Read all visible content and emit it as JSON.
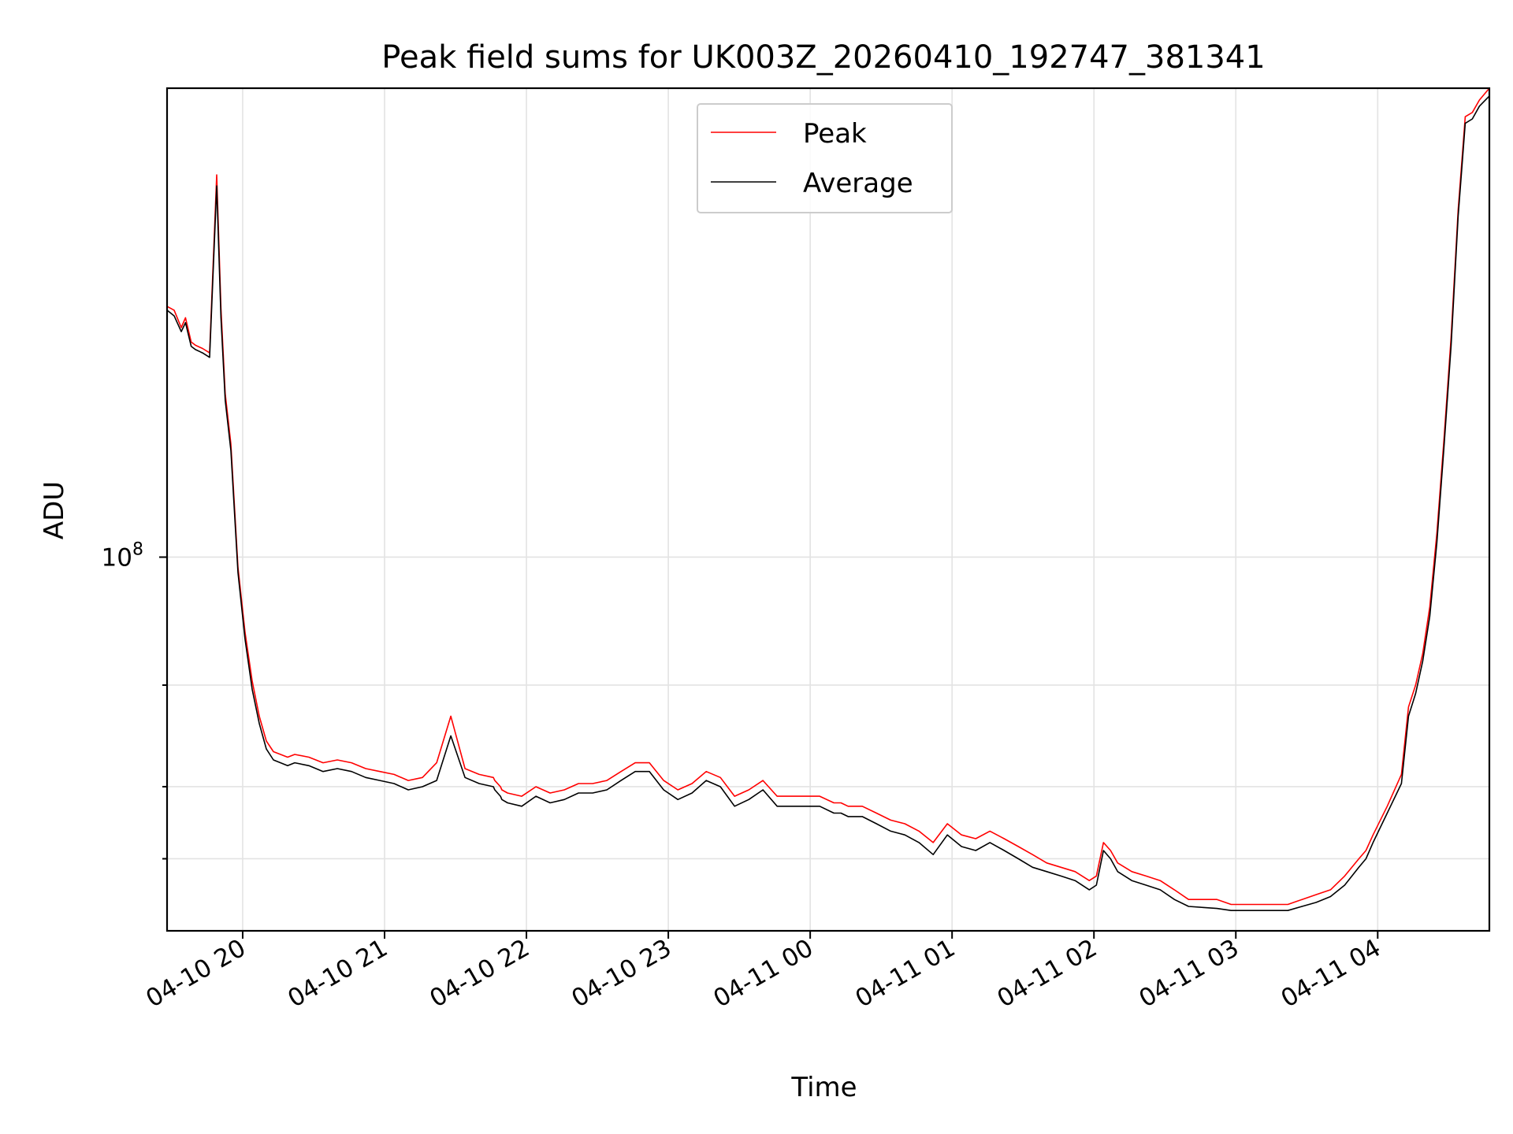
{
  "chart_data": {
    "type": "line",
    "title": "Peak field sums for UK003Z_20260410_192747_381341",
    "xlabel": "Time",
    "ylabel": "ADU",
    "yscale": "log",
    "grid": true,
    "legend_position": "top-center",
    "x_unit": "hours since 2026-04-10 19:28",
    "xlim": [
      0,
      9.32
    ],
    "ylim": [
      22500000,
      650000000
    ],
    "x_ticks": [
      {
        "value": 0.533,
        "label": "04-10 20"
      },
      {
        "value": 1.533,
        "label": "04-10 21"
      },
      {
        "value": 2.533,
        "label": "04-10 22"
      },
      {
        "value": 3.533,
        "label": "04-10 23"
      },
      {
        "value": 4.533,
        "label": "04-11 00"
      },
      {
        "value": 5.533,
        "label": "04-11 01"
      },
      {
        "value": 6.533,
        "label": "04-11 02"
      },
      {
        "value": 7.533,
        "label": "04-11 03"
      },
      {
        "value": 8.533,
        "label": "04-11 04"
      }
    ],
    "y_major_ticks": [
      {
        "value": 100000000,
        "base": "10",
        "exponent": "8"
      }
    ],
    "y_minor_ticks": [
      30000000,
      40000000,
      60000000
    ],
    "series": [
      {
        "name": "Peak",
        "color": "#ff0000",
        "x": [
          0,
          0.05,
          0.1,
          0.13,
          0.17,
          0.2,
          0.25,
          0.3,
          0.35,
          0.38,
          0.3801,
          0.41,
          0.45,
          0.5,
          0.55,
          0.6,
          0.65,
          0.7,
          0.75,
          0.8,
          0.85,
          0.9,
          1,
          1.1,
          1.2,
          1.3,
          1.4,
          1.5,
          1.6,
          1.7,
          1.8,
          1.9,
          2,
          2.1,
          2.2,
          2.3,
          2.31,
          2.35,
          2.36,
          2.4,
          2.5,
          2.6,
          2.7,
          2.8,
          2.9,
          3,
          3.1,
          3.2,
          3.3,
          3.4,
          3.5,
          3.6,
          3.7,
          3.8,
          3.9,
          4,
          4.1,
          4.2,
          4.3,
          4.4,
          4.5,
          4.6,
          4.7,
          4.75,
          4.8,
          4.9,
          5,
          5.1,
          5.2,
          5.3,
          5.4,
          5.5,
          5.6,
          5.7,
          5.8,
          5.9,
          6,
          6.1,
          6.2,
          6.3,
          6.4,
          6.5,
          6.55,
          6.6,
          6.65,
          6.7,
          6.8,
          6.9,
          7,
          7.1,
          7.2,
          7.3,
          7.4,
          7.5,
          7.6,
          7.7,
          7.8,
          7.9,
          8,
          8.1,
          8.2,
          8.3,
          8.4,
          8.45,
          8.5,
          8.6,
          8.7,
          8.75,
          8.8,
          8.85,
          8.9,
          8.95,
          9,
          9.05,
          9.1,
          9.15,
          9.2,
          9.25,
          9.32
        ],
        "values": [
          272000000,
          268000000,
          250000000,
          260000000,
          236000000,
          233000000,
          230000000,
          226000000,
          460000000,
          270000000,
          270000000,
          192000000,
          157000000,
          96000000,
          74000000,
          61000000,
          53000000,
          48000000,
          46000000,
          45500000,
          45000000,
          45500000,
          45000000,
          44000000,
          44500000,
          44000000,
          43000000,
          42500000,
          42000000,
          41000000,
          41500000,
          44000000,
          53000000,
          43000000,
          42000000,
          41500000,
          41000000,
          40000000,
          39500000,
          39000000,
          38500000,
          40000000,
          39000000,
          39500000,
          40500000,
          40500000,
          41000000,
          42500000,
          44000000,
          44000000,
          41000000,
          39500000,
          40500000,
          42500000,
          41500000,
          38500000,
          39500000,
          41000000,
          38500000,
          38500000,
          38500000,
          38500000,
          37500000,
          37500000,
          37000000,
          37000000,
          36000000,
          35000000,
          34500000,
          33500000,
          32000000,
          34500000,
          33000000,
          32500000,
          33500000,
          32500000,
          31500000,
          30500000,
          29500000,
          29000000,
          28500000,
          27500000,
          28000000,
          32000000,
          31000000,
          29500000,
          28500000,
          28000000,
          27500000,
          26500000,
          25500000,
          25500000,
          25500000,
          25000000,
          25000000,
          25000000,
          25000000,
          25000000,
          25500000,
          26000000,
          26500000,
          28000000,
          30000000,
          31000000,
          33000000,
          37000000,
          42000000,
          55000000,
          60000000,
          68000000,
          82000000,
          110000000,
          160000000,
          240000000,
          400000000,
          580000000,
          590000000,
          620000000,
          650000000
        ]
      },
      {
        "name": "Average",
        "color": "#000000",
        "x": [
          0,
          0.05,
          0.1,
          0.13,
          0.17,
          0.2,
          0.25,
          0.3,
          0.35,
          0.38,
          0.3801,
          0.41,
          0.45,
          0.5,
          0.55,
          0.6,
          0.65,
          0.7,
          0.75,
          0.8,
          0.85,
          0.9,
          1,
          1.1,
          1.2,
          1.3,
          1.4,
          1.5,
          1.6,
          1.7,
          1.8,
          1.9,
          2,
          2.1,
          2.2,
          2.3,
          2.31,
          2.35,
          2.36,
          2.4,
          2.5,
          2.6,
          2.7,
          2.8,
          2.9,
          3,
          3.1,
          3.2,
          3.3,
          3.4,
          3.5,
          3.6,
          3.7,
          3.8,
          3.9,
          4,
          4.1,
          4.2,
          4.3,
          4.4,
          4.5,
          4.6,
          4.7,
          4.75,
          4.8,
          4.9,
          5,
          5.1,
          5.2,
          5.3,
          5.4,
          5.5,
          5.6,
          5.7,
          5.8,
          5.9,
          6,
          6.1,
          6.2,
          6.3,
          6.4,
          6.5,
          6.55,
          6.6,
          6.65,
          6.7,
          6.8,
          6.9,
          7,
          7.1,
          7.2,
          7.3,
          7.4,
          7.5,
          7.6,
          7.7,
          7.8,
          7.9,
          8,
          8.1,
          8.2,
          8.3,
          8.4,
          8.45,
          8.5,
          8.6,
          8.7,
          8.75,
          8.8,
          8.85,
          8.9,
          8.95,
          9,
          9.05,
          9.1,
          9.15,
          9.2,
          9.25,
          9.32
        ],
        "values": [
          268000000,
          262000000,
          246000000,
          255000000,
          232000000,
          229000000,
          226000000,
          222000000,
          440000000,
          260000000,
          260000000,
          187000000,
          153000000,
          94000000,
          72000000,
          59000000,
          51500000,
          46500000,
          44500000,
          44000000,
          43500000,
          44000000,
          43500000,
          42500000,
          43000000,
          42500000,
          41500000,
          41000000,
          40500000,
          39500000,
          40000000,
          41000000,
          49000000,
          41500000,
          40500000,
          40000000,
          39500000,
          38500000,
          38000000,
          37500000,
          37000000,
          38500000,
          37500000,
          38000000,
          39000000,
          39000000,
          39500000,
          41000000,
          42500000,
          42500000,
          39500000,
          38000000,
          39000000,
          41000000,
          40000000,
          37000000,
          38000000,
          39500000,
          37000000,
          37000000,
          37000000,
          37000000,
          36000000,
          36000000,
          35500000,
          35500000,
          34500000,
          33500000,
          33000000,
          32000000,
          30500000,
          33000000,
          31500000,
          31000000,
          32000000,
          31000000,
          30000000,
          29000000,
          28500000,
          28000000,
          27500000,
          26500000,
          27000000,
          31000000,
          30000000,
          28500000,
          27500000,
          27000000,
          26500000,
          25500000,
          24800000,
          24700000,
          24600000,
          24400000,
          24400000,
          24400000,
          24400000,
          24400000,
          24800000,
          25200000,
          25800000,
          27000000,
          29000000,
          30000000,
          32000000,
          36000000,
          40500000,
          53000000,
          58000000,
          66000000,
          79000000,
          106000000,
          155000000,
          232000000,
          390000000,
          565000000,
          575000000,
          605000000,
          630000000
        ]
      }
    ]
  }
}
